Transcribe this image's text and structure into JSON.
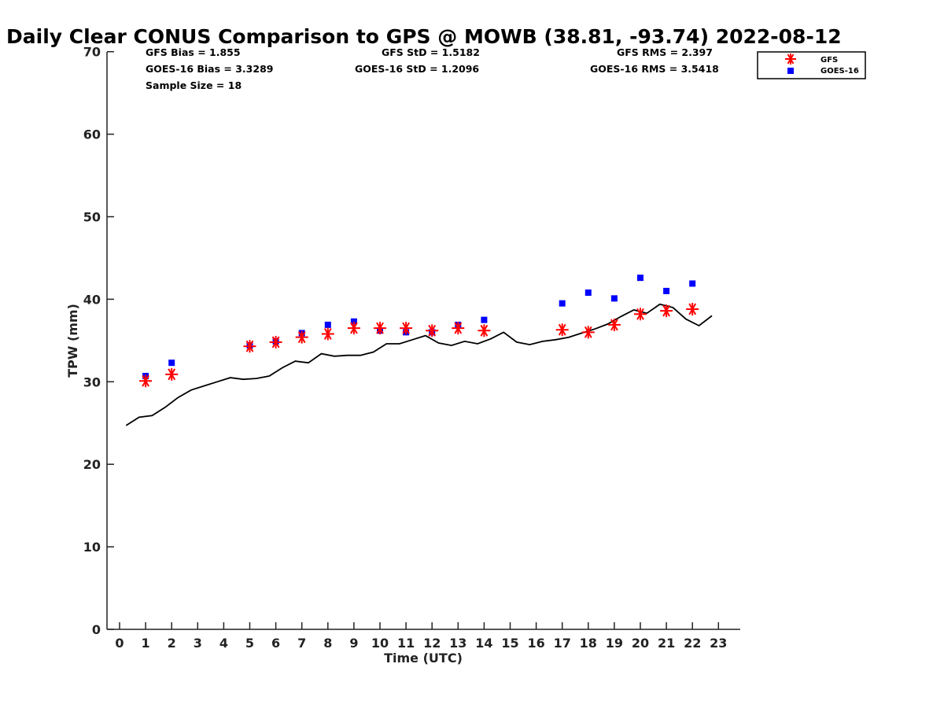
{
  "chart_data": {
    "type": "scatter",
    "title": "Daily Clear CONUS Comparison to GPS @ MOWB (38.81, -93.74) 2022-08-12",
    "xlabel": "Time (UTC)",
    "ylabel": "TPW (mm)",
    "xlim": [
      -0.5,
      23.3
    ],
    "ylim": [
      0,
      70
    ],
    "x_ticks": [
      "0",
      "1",
      "2",
      "3",
      "4",
      "5",
      "6",
      "7",
      "8",
      "9",
      "10",
      "11",
      "12",
      "13",
      "14",
      "15",
      "16",
      "17",
      "18",
      "19",
      "20",
      "21",
      "22",
      "23"
    ],
    "y_ticks": [
      "0",
      "10",
      "20",
      "30",
      "40",
      "50",
      "60",
      "70"
    ],
    "grid": false,
    "legend_position": "top-right",
    "stats": {
      "gfs_bias": "GFS Bias = 1.855",
      "goes_bias": "GOES-16 Bias = 3.3289",
      "sample_size": "Sample Size = 18",
      "gfs_std": "GFS StD = 1.5182",
      "goes_std": "GOES-16 StD = 1.2096",
      "gfs_rms": "GFS RMS = 2.397",
      "goes_rms": "GOES-16 RMS = 3.5418"
    },
    "series": [
      {
        "name": "GFS",
        "kind": "asterisk",
        "color": "#ff0000",
        "x": [
          1,
          2,
          5,
          6,
          7,
          8,
          9,
          10,
          11,
          12,
          13,
          14,
          17,
          18,
          19,
          20,
          21,
          22
        ],
        "y": [
          30.1,
          30.9,
          34.3,
          34.8,
          35.4,
          35.8,
          36.5,
          36.5,
          36.5,
          36.2,
          36.5,
          36.2,
          36.3,
          36.0,
          36.9,
          38.2,
          38.6,
          38.8
        ]
      },
      {
        "name": "GOES-16",
        "kind": "square",
        "color": "#0000ff",
        "x": [
          1,
          2,
          5,
          6,
          7,
          8,
          9,
          10,
          11,
          12,
          13,
          14,
          17,
          18,
          19,
          20,
          21,
          22
        ],
        "y": [
          30.7,
          32.3,
          34.4,
          34.9,
          35.9,
          36.9,
          37.3,
          36.2,
          36.0,
          36.0,
          36.9,
          37.5,
          39.5,
          40.8,
          40.1,
          42.6,
          41.0,
          41.9
        ]
      },
      {
        "name": "GPS",
        "kind": "line",
        "color": "#000000",
        "x": [
          0.25,
          0.75,
          1.25,
          1.75,
          2.25,
          2.75,
          3.25,
          3.75,
          4.25,
          4.75,
          5.25,
          5.75,
          6.25,
          6.75,
          7.25,
          7.75,
          8.25,
          8.75,
          9.25,
          9.75,
          10.25,
          10.75,
          11.25,
          11.75,
          12.25,
          12.75,
          13.25,
          13.75,
          14.25,
          14.75,
          15.25,
          15.75,
          16.25,
          16.75,
          17.25,
          17.75,
          18.25,
          18.75,
          19.25,
          19.75,
          20.25,
          20.75,
          21.25,
          21.75,
          22.25,
          22.75
        ],
        "y": [
          24.7,
          25.7,
          25.9,
          26.9,
          28.1,
          29.0,
          29.5,
          30.0,
          30.5,
          30.3,
          30.4,
          30.7,
          31.7,
          32.5,
          32.3,
          33.4,
          33.1,
          33.2,
          33.2,
          33.6,
          34.6,
          34.6,
          35.1,
          35.6,
          34.7,
          34.4,
          34.9,
          34.6,
          35.2,
          36.0,
          34.8,
          34.5,
          34.9,
          35.1,
          35.4,
          35.9,
          36.4,
          37.0,
          37.9,
          38.7,
          38.3,
          39.4,
          39.0,
          37.6,
          36.8,
          38.0
        ]
      }
    ]
  }
}
